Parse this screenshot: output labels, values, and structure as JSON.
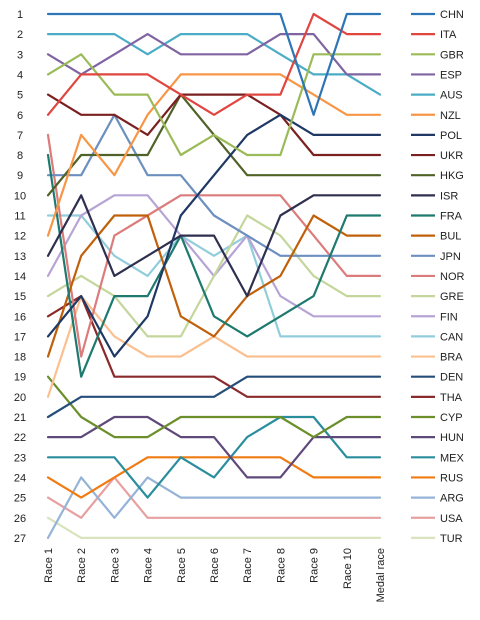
{
  "chart_data": {
    "type": "line",
    "title": "",
    "xlabel": "",
    "ylabel": "",
    "ylim": [
      1,
      27
    ],
    "y_inverted": true,
    "grid": false,
    "legend_position": "right",
    "x": [
      "Race 1",
      "Race 2",
      "Race 3",
      "Race 4",
      "Race 5",
      "Race 6",
      "Race 7",
      "Race 8",
      "Race 9",
      "Race 10",
      "Medal race"
    ],
    "y_ticks": [
      1,
      2,
      3,
      4,
      5,
      6,
      7,
      8,
      9,
      10,
      11,
      12,
      13,
      14,
      15,
      16,
      17,
      18,
      19,
      20,
      21,
      22,
      23,
      24,
      25,
      26,
      27
    ],
    "series": [
      {
        "name": "CHN",
        "color": "#2e75b6",
        "values": [
          1,
          1,
          1,
          1,
          1,
          1,
          1,
          1,
          6,
          1,
          1
        ]
      },
      {
        "name": "ITA",
        "color": "#e0463f",
        "values": [
          6,
          4,
          4,
          4,
          5,
          6,
          5,
          5,
          1,
          2,
          2
        ]
      },
      {
        "name": "GBR",
        "color": "#9bbb59",
        "values": [
          4,
          3,
          5,
          5,
          8,
          7,
          8,
          8,
          3,
          3,
          3
        ]
      },
      {
        "name": "ESP",
        "color": "#8064a2",
        "values": [
          3,
          4,
          3,
          2,
          3,
          3,
          3,
          2,
          2,
          4,
          4
        ]
      },
      {
        "name": "AUS",
        "color": "#4bacc6",
        "values": [
          2,
          2,
          2,
          3,
          2,
          2,
          2,
          3,
          4,
          4,
          5
        ]
      },
      {
        "name": "NZL",
        "color": "#f79646",
        "values": [
          12,
          7,
          9,
          6,
          4,
          4,
          4,
          4,
          5,
          6,
          6
        ]
      },
      {
        "name": "POL",
        "color": "#1f3864",
        "values": [
          17,
          15,
          18,
          16,
          11,
          9,
          7,
          6,
          7,
          7,
          7
        ]
      },
      {
        "name": "UKR",
        "color": "#7b2020",
        "values": [
          5,
          6,
          6,
          7,
          5,
          5,
          5,
          6,
          8,
          8,
          8
        ]
      },
      {
        "name": "HKG",
        "color": "#4f6228",
        "values": [
          10,
          8,
          8,
          8,
          5,
          7,
          9,
          9,
          9,
          9,
          9
        ]
      },
      {
        "name": "ISR",
        "color": "#2f2f4f",
        "values": [
          13,
          10,
          14,
          13,
          12,
          12,
          15,
          11,
          10,
          10,
          10
        ]
      },
      {
        "name": "FRA",
        "color": "#1e7a6e",
        "values": [
          8,
          19,
          15,
          15,
          12,
          16,
          17,
          16,
          15,
          11,
          11
        ]
      },
      {
        "name": "BUL",
        "color": "#c0600a",
        "values": [
          18,
          13,
          11,
          11,
          16,
          17,
          15,
          14,
          11,
          12,
          12
        ]
      },
      {
        "name": "JPN",
        "color": "#6b8fbf",
        "values": [
          9,
          9,
          6,
          9,
          9,
          11,
          12,
          13,
          13,
          13,
          13
        ]
      },
      {
        "name": "NOR",
        "color": "#dc7b7b",
        "values": [
          7,
          18,
          12,
          11,
          10,
          10,
          10,
          10,
          12,
          14,
          14
        ]
      },
      {
        "name": "GRE",
        "color": "#c3d69b",
        "values": [
          15,
          14,
          15,
          17,
          17,
          14,
          11,
          12,
          14,
          15,
          15
        ]
      },
      {
        "name": "FIN",
        "color": "#b7a4d6",
        "values": [
          14,
          11,
          10,
          10,
          12,
          14,
          12,
          15,
          16,
          16,
          16
        ]
      },
      {
        "name": "CAN",
        "color": "#92cddc",
        "values": [
          11,
          11,
          13,
          14,
          12,
          13,
          12,
          17,
          17,
          17,
          17
        ]
      },
      {
        "name": "BRA",
        "color": "#fac090",
        "values": [
          20,
          15,
          17,
          18,
          18,
          17,
          18,
          18,
          18,
          18,
          18
        ]
      },
      {
        "name": "DEN",
        "color": "#254f7a",
        "values": [
          21,
          20,
          20,
          20,
          20,
          20,
          19,
          19,
          19,
          19,
          19
        ]
      },
      {
        "name": "THA",
        "color": "#8b2a2a",
        "values": [
          16,
          15,
          19,
          19,
          19,
          19,
          20,
          20,
          20,
          20,
          20
        ]
      },
      {
        "name": "CYP",
        "color": "#6a8f2b",
        "values": [
          19,
          21,
          22,
          22,
          21,
          21,
          21,
          21,
          22,
          21,
          21
        ]
      },
      {
        "name": "HUN",
        "color": "#5f497a",
        "values": [
          22,
          22,
          21,
          21,
          22,
          22,
          24,
          24,
          22,
          22,
          22
        ]
      },
      {
        "name": "MEX",
        "color": "#2a8d9c",
        "values": [
          23,
          23,
          23,
          25,
          23,
          24,
          22,
          21,
          21,
          23,
          23
        ]
      },
      {
        "name": "RUS",
        "color": "#f07b12",
        "values": [
          24,
          25,
          24,
          23,
          23,
          23,
          23,
          23,
          24,
          24,
          24
        ]
      },
      {
        "name": "ARG",
        "color": "#95b3d7",
        "values": [
          27,
          24,
          26,
          24,
          25,
          25,
          25,
          25,
          25,
          25,
          25
        ]
      },
      {
        "name": "USA",
        "color": "#e6a0a0",
        "values": [
          25,
          26,
          24,
          26,
          26,
          26,
          26,
          26,
          26,
          26,
          26
        ]
      },
      {
        "name": "TUR",
        "color": "#d7e4bd",
        "values": [
          26,
          27,
          27,
          27,
          27,
          27,
          27,
          27,
          27,
          27,
          27
        ]
      }
    ]
  }
}
